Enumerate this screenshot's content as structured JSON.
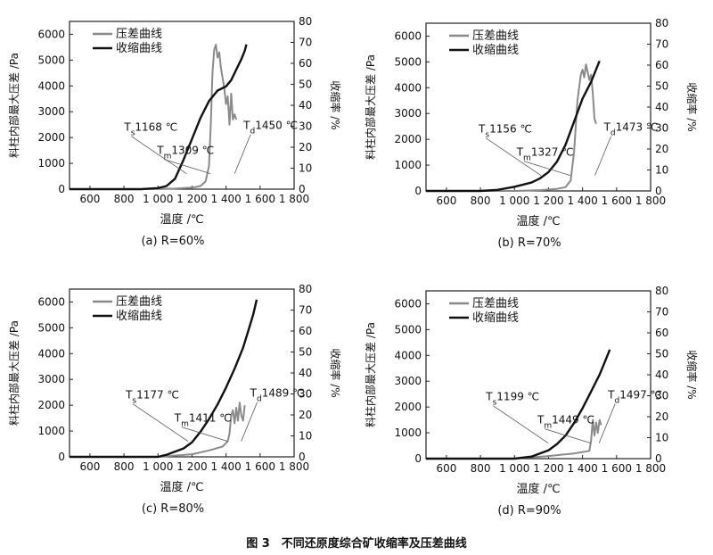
{
  "figure_caption": "图 3　不同还原度综合矿收缩率及压差曲线",
  "legend_labels": [
    "压差曲线",
    "收缩曲线"
  ],
  "y_left_label": "料柱内部最大压差 /Pa",
  "y_right_label": "收缩率 /%",
  "x_label": "温度 /℃",
  "x_ticks": [
    "600",
    "800",
    "1 000",
    "1 200",
    "1 400",
    "1 600",
    "1 800"
  ],
  "y_left_ticks": [
    "0",
    "1000",
    "2000",
    "3000",
    "4000",
    "5000",
    "6000"
  ],
  "y_right_ticks": [
    "0",
    "10",
    "20",
    "30",
    "40",
    "50",
    "60",
    "70",
    "80"
  ],
  "colors": {
    "pressure": "#8a8a8a",
    "shrink": "#111111",
    "axis": "#222222"
  },
  "chart_data": [
    {
      "type": "line",
      "caption": "(a)  R=60%",
      "annotations": {
        "ts": "1168 ℃",
        "tm": "1309 ℃",
        "td": "1450 ℃"
      },
      "xlim": [
        480,
        1800
      ],
      "ylim_left": [
        0,
        6500
      ],
      "ylim_right": [
        0,
        80
      ],
      "series": [
        {
          "name": "压差曲线",
          "axis": "left",
          "points": [
            [
              480,
              0
            ],
            [
              900,
              0
            ],
            [
              1100,
              20
            ],
            [
              1200,
              60
            ],
            [
              1250,
              120
            ],
            [
              1280,
              300
            ],
            [
              1300,
              900
            ],
            [
              1310,
              2500
            ],
            [
              1320,
              4500
            ],
            [
              1330,
              5400
            ],
            [
              1340,
              5600
            ],
            [
              1350,
              5100
            ],
            [
              1360,
              5300
            ],
            [
              1370,
              4700
            ],
            [
              1380,
              4300
            ],
            [
              1390,
              3900
            ],
            [
              1400,
              3300
            ],
            [
              1410,
              3600
            ],
            [
              1420,
              2500
            ],
            [
              1430,
              3700
            ],
            [
              1440,
              2700
            ],
            [
              1450,
              2900
            ],
            [
              1460,
              2700
            ]
          ]
        },
        {
          "name": "收缩曲线",
          "axis": "right",
          "points": [
            [
              480,
              0
            ],
            [
              900,
              0
            ],
            [
              1000,
              0.5
            ],
            [
              1050,
              1.5
            ],
            [
              1100,
              5
            ],
            [
              1150,
              14
            ],
            [
              1200,
              24
            ],
            [
              1250,
              34
            ],
            [
              1300,
              42
            ],
            [
              1350,
              47
            ],
            [
              1400,
              49
            ],
            [
              1430,
              52
            ],
            [
              1460,
              57
            ],
            [
              1490,
              62
            ],
            [
              1510,
              66
            ],
            [
              1520,
              69
            ]
          ]
        }
      ]
    },
    {
      "type": "line",
      "caption": "(b)  R=70%",
      "annotations": {
        "ts": "1156 ℃",
        "tm": "1327 ℃",
        "td": "1473 ℃"
      },
      "xlim": [
        480,
        1800
      ],
      "ylim_left": [
        0,
        6500
      ],
      "ylim_right": [
        0,
        80
      ],
      "series": [
        {
          "name": "压差曲线",
          "axis": "left",
          "points": [
            [
              480,
              0
            ],
            [
              1000,
              0
            ],
            [
              1150,
              30
            ],
            [
              1250,
              80
            ],
            [
              1300,
              150
            ],
            [
              1330,
              400
            ],
            [
              1350,
              1500
            ],
            [
              1370,
              3500
            ],
            [
              1390,
              4500
            ],
            [
              1400,
              4700
            ],
            [
              1410,
              4400
            ],
            [
              1420,
              4900
            ],
            [
              1430,
              4600
            ],
            [
              1440,
              4300
            ],
            [
              1450,
              4500
            ],
            [
              1460,
              3800
            ],
            [
              1470,
              2800
            ],
            [
              1480,
              2600
            ]
          ]
        },
        {
          "name": "收缩曲线",
          "axis": "right",
          "points": [
            [
              480,
              0
            ],
            [
              800,
              0
            ],
            [
              900,
              0.5
            ],
            [
              1000,
              2
            ],
            [
              1100,
              4
            ],
            [
              1150,
              6
            ],
            [
              1200,
              9
            ],
            [
              1250,
              14
            ],
            [
              1300,
              22
            ],
            [
              1350,
              33
            ],
            [
              1400,
              44
            ],
            [
              1450,
              52
            ],
            [
              1480,
              58
            ],
            [
              1500,
              62
            ]
          ]
        }
      ]
    },
    {
      "type": "line",
      "caption": "(c)  R=80%",
      "annotations": {
        "ts": "1177 ℃",
        "tm": "1411 ℃",
        "td": "1489 ℃"
      },
      "xlim": [
        480,
        1800
      ],
      "ylim_left": [
        0,
        6500
      ],
      "ylim_right": [
        0,
        80
      ],
      "series": [
        {
          "name": "压差曲线",
          "axis": "left",
          "points": [
            [
              480,
              0
            ],
            [
              1000,
              0
            ],
            [
              1200,
              100
            ],
            [
              1300,
              250
            ],
            [
              1380,
              400
            ],
            [
              1410,
              600
            ],
            [
              1420,
              900
            ],
            [
              1430,
              1600
            ],
            [
              1440,
              1800
            ],
            [
              1450,
              1300
            ],
            [
              1460,
              1900
            ],
            [
              1470,
              1400
            ],
            [
              1480,
              2100
            ],
            [
              1490,
              1600
            ],
            [
              1500,
              1400
            ],
            [
              1510,
              2000
            ]
          ]
        },
        {
          "name": "收缩曲线",
          "axis": "right",
          "points": [
            [
              480,
              0
            ],
            [
              1000,
              0
            ],
            [
              1050,
              1
            ],
            [
              1100,
              2.5
            ],
            [
              1150,
              4
            ],
            [
              1200,
              7
            ],
            [
              1250,
              12
            ],
            [
              1300,
              18
            ],
            [
              1350,
              25
            ],
            [
              1400,
              33
            ],
            [
              1450,
              42
            ],
            [
              1500,
              52
            ],
            [
              1530,
              60
            ],
            [
              1560,
              68
            ],
            [
              1580,
              75
            ]
          ]
        }
      ]
    },
    {
      "type": "line",
      "caption": "(d)  R=90%",
      "annotations": {
        "ts": "1199 ℃",
        "tm": "1449 ℃",
        "td": "1497 ℃"
      },
      "xlim": [
        480,
        1800
      ],
      "ylim_left": [
        0,
        6500
      ],
      "ylim_right": [
        0,
        80
      ],
      "series": [
        {
          "name": "压差曲线",
          "axis": "left",
          "points": [
            [
              480,
              0
            ],
            [
              1000,
              0
            ],
            [
              1200,
              100
            ],
            [
              1350,
              200
            ],
            [
              1440,
              300
            ],
            [
              1450,
              700
            ],
            [
              1460,
              1500
            ],
            [
              1470,
              900
            ],
            [
              1480,
              1400
            ],
            [
              1490,
              1000
            ],
            [
              1500,
              1500
            ],
            [
              1510,
              1300
            ]
          ]
        },
        {
          "name": "收缩曲线",
          "axis": "right",
          "points": [
            [
              480,
              0
            ],
            [
              1000,
              0
            ],
            [
              1100,
              1
            ],
            [
              1200,
              4
            ],
            [
              1250,
              7
            ],
            [
              1300,
              11
            ],
            [
              1350,
              17
            ],
            [
              1400,
              24
            ],
            [
              1450,
              32
            ],
            [
              1500,
              40
            ],
            [
              1530,
              46
            ],
            [
              1560,
              52
            ]
          ]
        }
      ]
    }
  ]
}
